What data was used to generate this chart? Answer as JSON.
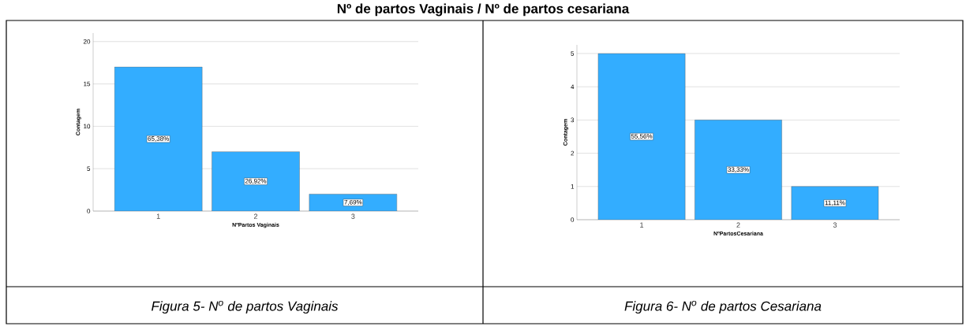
{
  "chart_data": [
    {
      "type": "bar",
      "title": "Nº de partos Vaginais / Nº de partos cesariana",
      "xlabel": "NºPartos Vaginais",
      "ylabel": "Contagem",
      "categories": [
        "1",
        "2",
        "3"
      ],
      "values": [
        17,
        7,
        2
      ],
      "color": "#33adff",
      "ylim": [
        0,
        21
      ],
      "yticks": [
        0,
        5,
        10,
        15,
        20
      ],
      "grid": "y",
      "annotations": [
        "Figura 5- N$^{o}$ de partos Vaginais",
        "65,38%",
        "26,92%",
        "7,69%"
      ]
    },
    {
      "type": "bar",
      "xlabel": "NºPartosCesariana",
      "ylabel": "Contagem",
      "categories": [
        "1",
        "2",
        "3"
      ],
      "values": [
        5,
        3,
        1
      ],
      "color": "#33adff",
      "ylim": [
        0,
        5.26
      ],
      "yticks": [
        0,
        1,
        2,
        3,
        4,
        5
      ],
      "grid": "y",
      "annotations": [
        "Figura 6- N$^{o}$ de partos Cesariana",
        "55,56%",
        "33,33%",
        "11,11%"
      ]
    }
  ]
}
